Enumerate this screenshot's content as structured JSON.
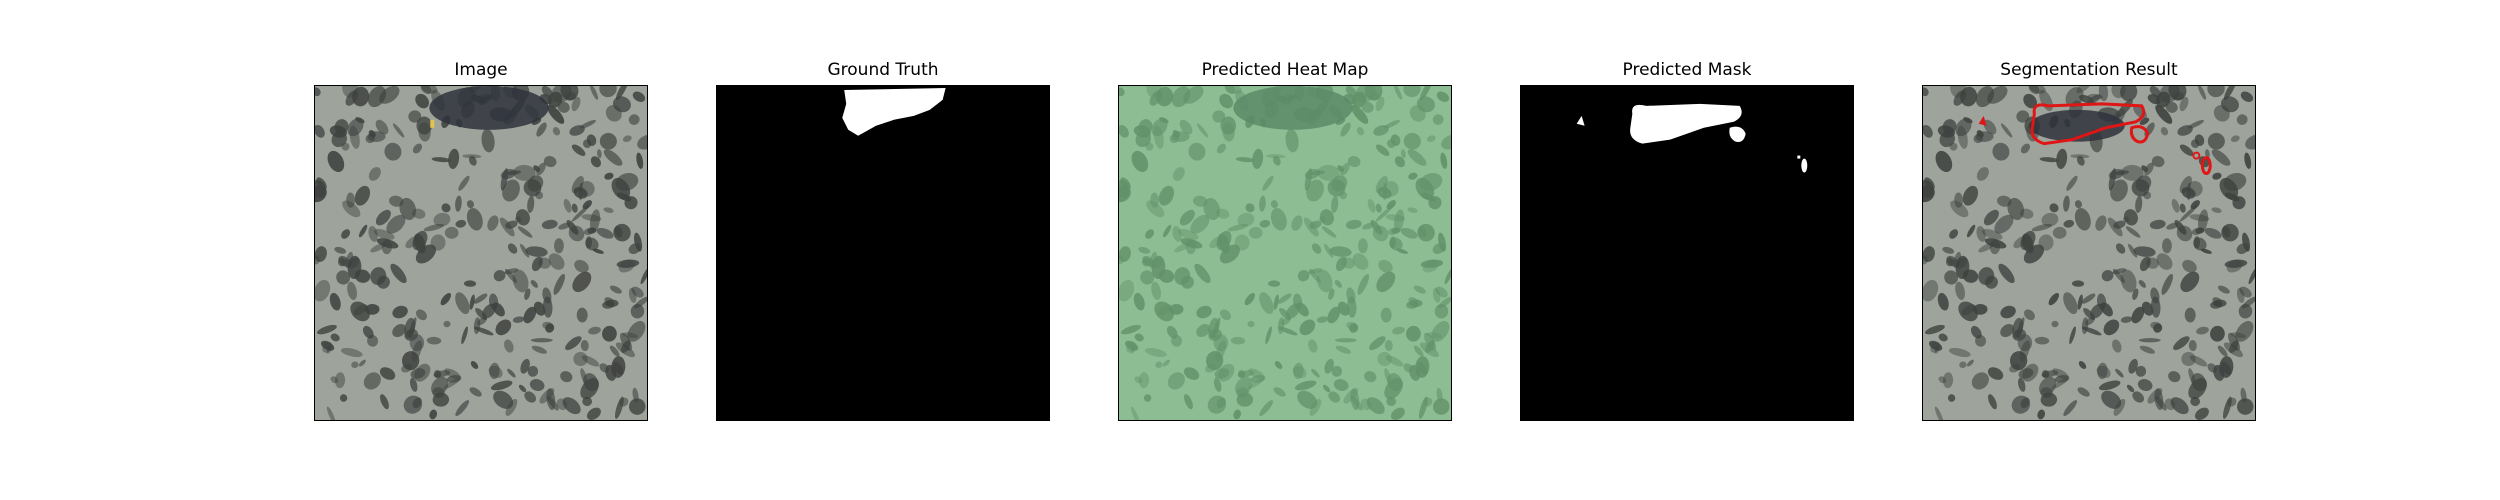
{
  "panels": [
    {
      "title": "Image"
    },
    {
      "title": "Ground Truth"
    },
    {
      "title": "Predicted Heat Map"
    },
    {
      "title": "Predicted Mask"
    },
    {
      "title": "Segmentation Result"
    }
  ],
  "colors": {
    "texture_background": "#9ea39b",
    "texture_spot": "#3e423f",
    "mask_fill": "#ffffff",
    "mask_background": "#000000",
    "heatmap_overlay": "#7fd38c",
    "contour": "#e01515"
  }
}
